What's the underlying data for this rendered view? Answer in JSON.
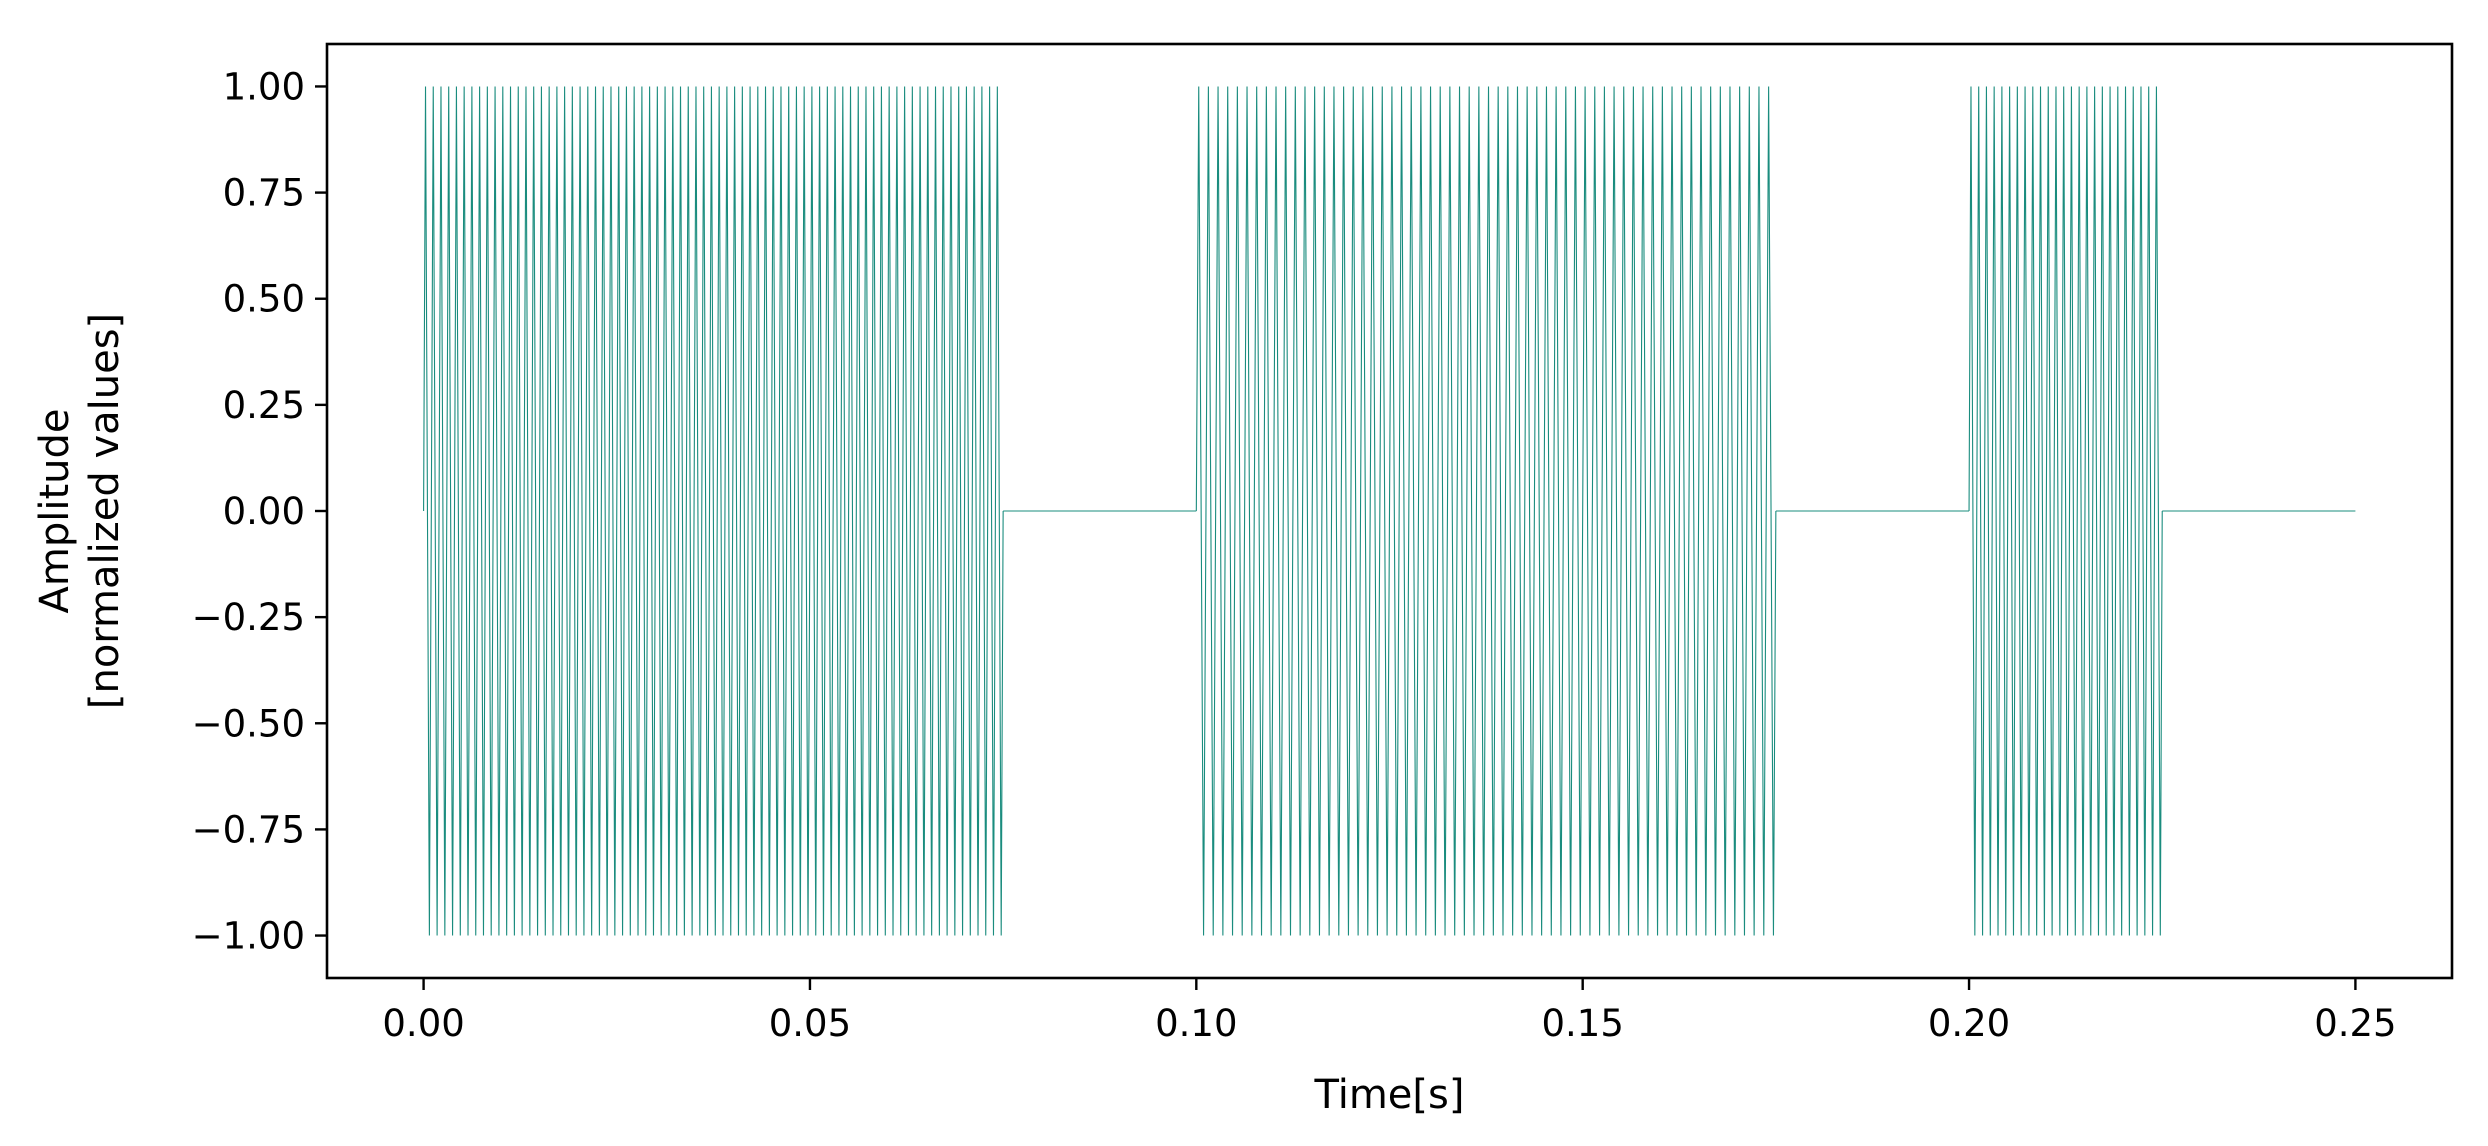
{
  "chart_data": {
    "type": "line",
    "title": "",
    "xlabel": "Time[s]",
    "ylabel_lines": [
      "Amplitude",
      "[normalized values]"
    ],
    "xlim": [
      -0.0125,
      0.2625
    ],
    "ylim": [
      -1.1,
      1.1
    ],
    "x_ticks": [
      0.0,
      0.05,
      0.1,
      0.15,
      0.2,
      0.25
    ],
    "x_tick_labels": [
      "0.00",
      "0.05",
      "0.10",
      "0.15",
      "0.20",
      "0.25"
    ],
    "y_ticks": [
      1.0,
      0.75,
      0.5,
      0.25,
      0.0,
      -0.25,
      -0.5,
      -0.75,
      -1.0
    ],
    "y_tick_labels": [
      "1.00",
      "0.75",
      "0.50",
      "0.25",
      "0.00",
      "−0.25",
      "−0.50",
      "−0.75",
      "−1.00"
    ],
    "grid": false,
    "series": [
      {
        "color": "#1a8c7e",
        "segments": [
          {
            "kind": "tone",
            "start": 0.0,
            "end": 0.075,
            "frequency_hz": 1000,
            "amplitude": 1.0
          },
          {
            "kind": "silence",
            "start": 0.075,
            "end": 0.1
          },
          {
            "kind": "tone",
            "start": 0.1,
            "end": 0.175,
            "frequency_hz": 800,
            "amplitude": 1.0
          },
          {
            "kind": "silence",
            "start": 0.175,
            "end": 0.2
          },
          {
            "kind": "tone",
            "start": 0.2,
            "end": 0.225,
            "frequency_hz": 1000,
            "amplitude": 1.0
          },
          {
            "kind": "silence",
            "start": 0.225,
            "end": 0.25
          }
        ]
      }
    ]
  }
}
